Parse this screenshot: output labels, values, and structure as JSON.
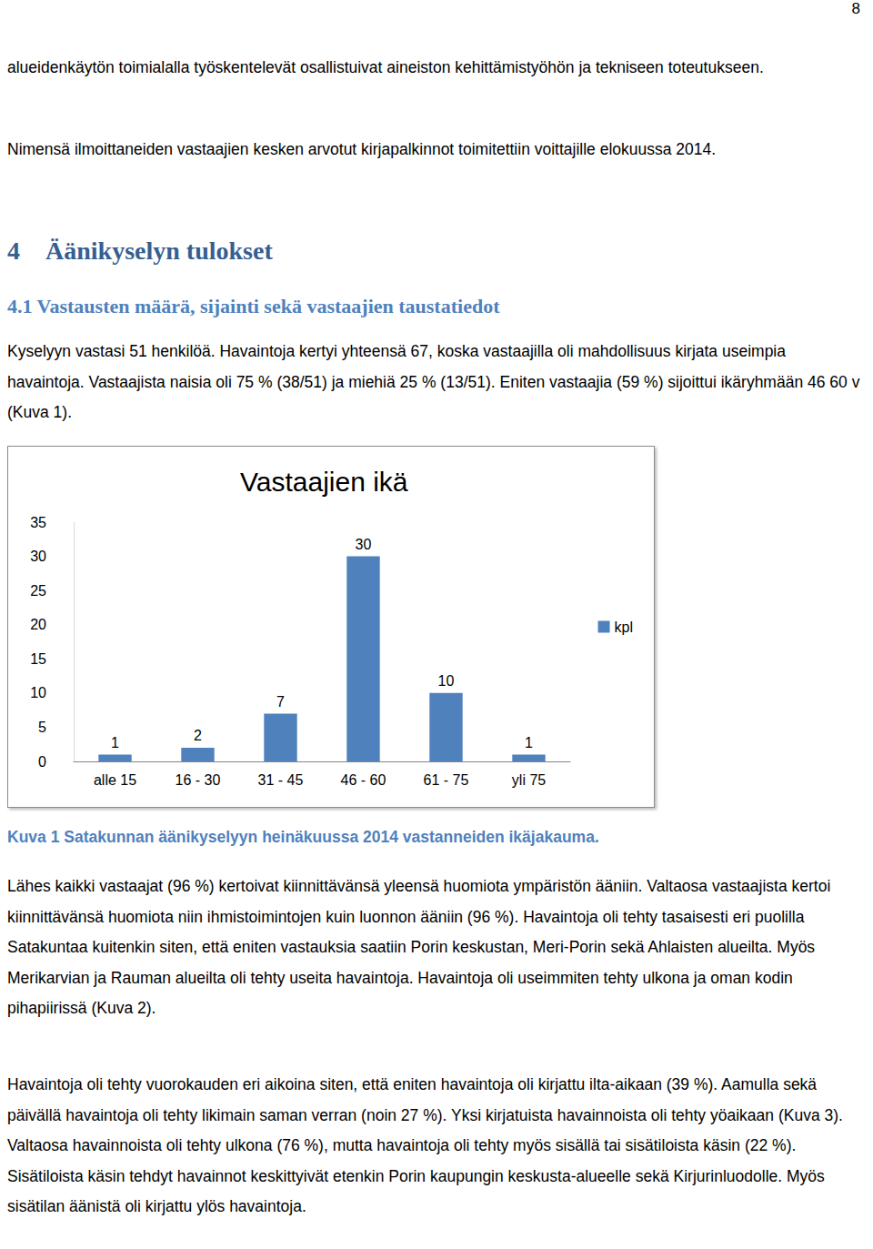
{
  "page_number": "8",
  "paragraphs_before": [
    "alueidenkäytön toimialalla työskentelevät osallistuivat aineiston kehittämistyöhön ja tekniseen toteutukseen.",
    "Nimensä ilmoittaneiden vastaajien kesken arvotut kirjapalkinnot toimitettiin voittajille elokuussa 2014."
  ],
  "heading1": {
    "number": "4",
    "text": "Äänikyselyn tulokset"
  },
  "heading2": "4.1 Vastausten määrä, sijainti sekä vastaajien taustatiedot",
  "paragraph_intro": "Kyselyyn vastasi 51 henkilöä. Havaintoja kertyi yhteensä 67, koska vastaajilla oli mahdollisuus kirjata useimpia havaintoja. Vastaajista naisia oli 75 % (38/51) ja miehiä 25  % (13/51). Eniten vastaajia (59 %) sijoittui ikäryhmään 46 60 v (Kuva 1).",
  "chart_data": {
    "type": "bar",
    "title": "Vastaajien ikä",
    "categories": [
      "alle 15",
      "16 - 30",
      "31 - 45",
      "46 - 60",
      "61 - 75",
      "yli 75"
    ],
    "series": [
      {
        "name": "kpl",
        "color": "#4f81bd",
        "values": [
          1,
          2,
          7,
          30,
          10,
          1
        ]
      }
    ],
    "ylim": [
      0,
      35
    ],
    "yticks": [
      0,
      5,
      10,
      15,
      20,
      25,
      30,
      35
    ],
    "grid": false,
    "legend": "right",
    "data_labels": true
  },
  "caption": "Kuva 1 Satakunnan äänikyselyyn heinäkuussa 2014 vastanneiden ikäjakauma.",
  "paragraphs_after": [
    "Lähes kaikki vastaajat (96 %) kertoivat kiinnittävänsä yleensä huomiota ympäristön ääniin. Valtaosa vastaajista kertoi kiinnittävänsä huomiota niin ihmistoimintojen kuin luonnon ääniin (96 %). Havaintoja oli tehty tasaisesti eri puolilla Satakuntaa kuitenkin siten, että eniten vastauksia saatiin Porin keskustan, Meri-Porin sekä Ahlaisten alueilta. Myös Merikarvian ja Rauman alueilta oli tehty useita havaintoja. Havaintoja oli useimmiten tehty ulkona ja oman kodin pihapiirissä (Kuva 2).",
    "Havaintoja oli tehty vuorokauden eri aikoina siten, että eniten havaintoja oli kirjattu ilta-aikaan (39 %). Aamulla sekä päivällä havaintoja oli tehty likimain saman verran (noin 27 %).  Yksi kirjatuista havainnoista oli tehty yöaikaan (Kuva 3). Valtaosa havainnoista oli tehty ulkona (76 %), mutta havaintoja oli tehty myös sisällä tai sisätiloista käsin (22 %). Sisätiloista käsin tehdyt havainnot keskittyivät etenkin Porin kaupungin keskusta-alueelle sekä Kirjurinluodolle. Myös sisätilan äänistä oli kirjattu ylös havaintoja."
  ]
}
